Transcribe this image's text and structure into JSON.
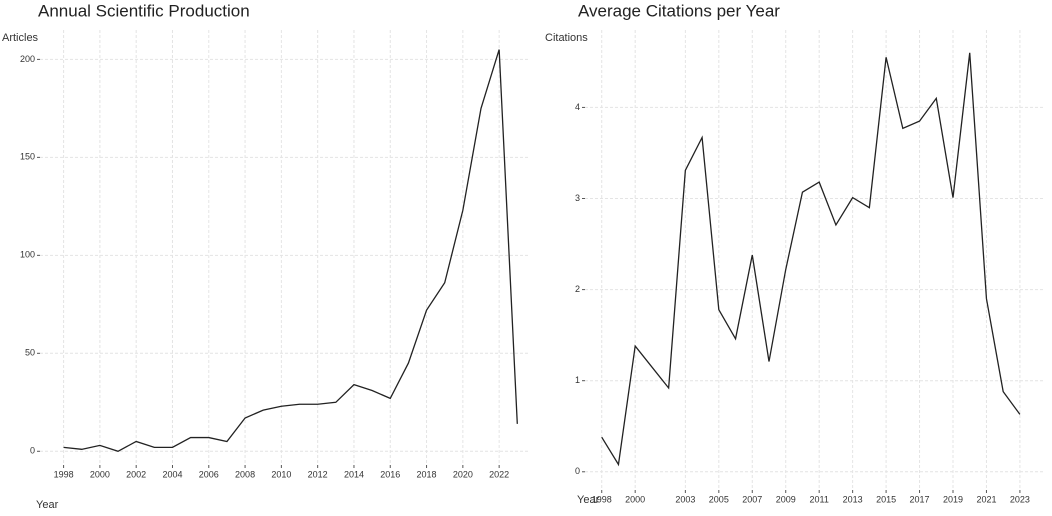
{
  "chart_data": [
    {
      "type": "line",
      "title": "Annual Scientific Production",
      "y_label": "Articles",
      "x_label": "Year",
      "x": [
        1998,
        1999,
        2000,
        2001,
        2002,
        2003,
        2004,
        2005,
        2006,
        2007,
        2008,
        2009,
        2010,
        2011,
        2012,
        2013,
        2014,
        2015,
        2016,
        2017,
        2018,
        2019,
        2020,
        2021,
        2022,
        2023
      ],
      "series": [
        {
          "name": "Articles",
          "color": "#222222",
          "values": [
            2,
            1,
            3,
            0,
            5,
            2,
            2,
            7,
            7,
            5,
            17,
            21,
            23,
            24,
            24,
            25,
            34,
            31,
            27,
            45,
            72,
            86,
            123,
            175,
            205,
            14
          ]
        }
      ],
      "xlim": [
        1996.7,
        2023.7
      ],
      "xticks": [
        1998,
        2000,
        2002,
        2004,
        2006,
        2008,
        2010,
        2012,
        2014,
        2016,
        2018,
        2020,
        2022
      ],
      "ylim": [
        -7,
        215
      ],
      "yticks": [
        0,
        50,
        100,
        150,
        200
      ],
      "grid": true
    },
    {
      "type": "line",
      "title": "Average Citations per Year",
      "y_label": "Citations",
      "x_label": "Year",
      "x": [
        1998,
        1999,
        2000,
        2002,
        2003,
        2004,
        2005,
        2006,
        2007,
        2008,
        2009,
        2010,
        2011,
        2012,
        2013,
        2014,
        2015,
        2016,
        2017,
        2018,
        2019,
        2020,
        2021,
        2022,
        2023
      ],
      "series": [
        {
          "name": "Citations",
          "color": "#222222",
          "values": [
            0.38,
            0.08,
            1.38,
            0.92,
            3.31,
            3.67,
            1.78,
            1.46,
            2.38,
            1.21,
            2.22,
            3.07,
            3.18,
            2.71,
            3.01,
            2.9,
            4.55,
            3.77,
            3.85,
            4.1,
            3.01,
            4.6,
            1.9,
            0.88,
            0.63
          ]
        }
      ],
      "xlim": [
        1997,
        2024.5
      ],
      "xticks": [
        1998,
        2000,
        2003,
        2005,
        2007,
        2009,
        2011,
        2013,
        2015,
        2017,
        2019,
        2021,
        2023
      ],
      "ylim": [
        -0.2,
        4.85
      ],
      "yticks": [
        0,
        1,
        2,
        3,
        4
      ],
      "grid": true
    }
  ]
}
